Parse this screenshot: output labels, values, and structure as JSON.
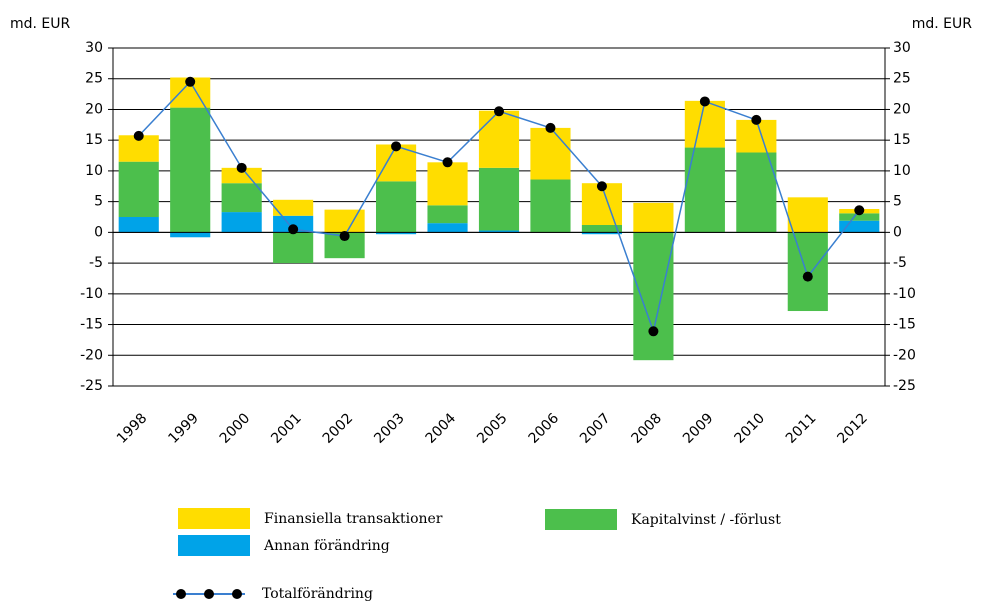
{
  "chart_data": {
    "type": "stacked_bar_line",
    "ylabel": "md. EUR",
    "y2label": "md. EUR",
    "categories": [
      "1998",
      "1999",
      "2000",
      "2001",
      "2002",
      "2003",
      "2004",
      "2005",
      "2006",
      "2007",
      "2008",
      "2009",
      "2010",
      "2011",
      "2012"
    ],
    "series": [
      {
        "name": "Annan förändring",
        "color": "#00a3e8",
        "values": [
          2.5,
          -0.8,
          3.3,
          2.7,
          0,
          -0.3,
          1.5,
          0.3,
          0,
          -0.3,
          0,
          0,
          0,
          0,
          1.9
        ]
      },
      {
        "name": "Kapitalvinst / -förlust",
        "color": "#4cbf4c",
        "values": [
          9,
          20.3,
          4.7,
          -5,
          -4.2,
          8.3,
          2.9,
          10.2,
          8.6,
          1.2,
          -20.8,
          13.8,
          13,
          -12.8,
          1.2
        ]
      },
      {
        "name": "Finansiella transaktioner",
        "color": "#ffdd00",
        "values": [
          4.3,
          4.9,
          2.5,
          2.6,
          3.7,
          6,
          7,
          9.3,
          8.4,
          6.8,
          4.8,
          7.6,
          5.3,
          5.7,
          0.7
        ]
      },
      {
        "name": "Totalförändring",
        "type": "line",
        "color": "#3a7fd0",
        "marker_color": "#000000",
        "values": [
          15.7,
          24.5,
          10.5,
          0.5,
          -0.6,
          14,
          11.4,
          19.7,
          17,
          7.5,
          -16.1,
          21.3,
          18.3,
          -7.2,
          3.6
        ]
      }
    ],
    "ylim": [
      -25,
      30
    ],
    "yticks": [
      -25,
      -20,
      -15,
      -10,
      -5,
      0,
      5,
      10,
      15,
      20,
      25,
      30
    ],
    "y2lim": [
      -25,
      30
    ],
    "y2ticks": [
      -25,
      -20,
      -15,
      -10,
      -5,
      0,
      5,
      10,
      15,
      20,
      25,
      30
    ],
    "grid": true
  }
}
